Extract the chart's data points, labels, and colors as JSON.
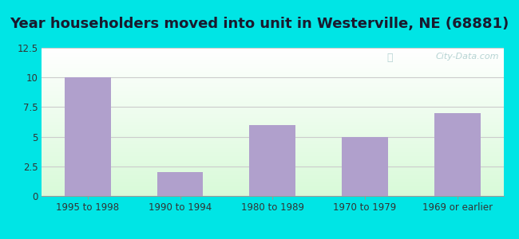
{
  "title": "Year householders moved into unit in Westerville, NE (68881)",
  "categories": [
    "1995 to 1998",
    "1990 to 1994",
    "1980 to 1989",
    "1970 to 1979",
    "1969 or earlier"
  ],
  "values": [
    10,
    2,
    6,
    5,
    7
  ],
  "bar_color": "#b0a0cc",
  "ylim": [
    0,
    12.5
  ],
  "yticks": [
    0,
    2.5,
    5.0,
    7.5,
    10.0,
    12.5
  ],
  "outer_bg": "#00e5e5",
  "title_fontsize": 13,
  "tick_fontsize": 8.5,
  "watermark": "City-Data.com"
}
